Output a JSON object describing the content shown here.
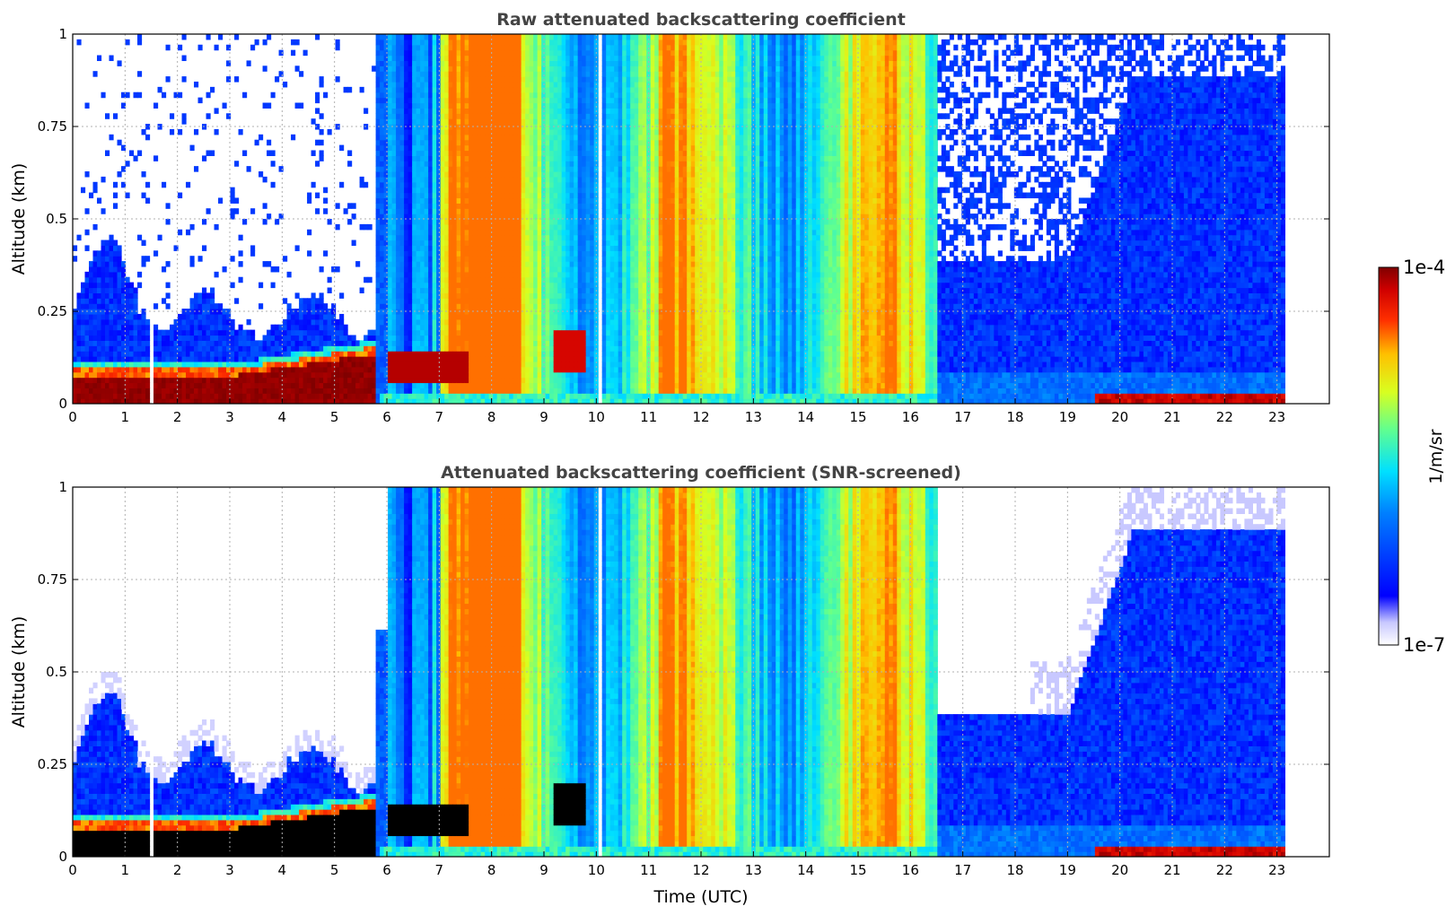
{
  "chart_data": [
    {
      "type": "heatmap",
      "title": "Raw attenuated backscattering coefficient",
      "xlabel": "",
      "ylabel": "Altitude (km)",
      "xlim": [
        0,
        24
      ],
      "ylim": [
        0,
        1
      ],
      "x_ticks": [
        "0",
        "1",
        "2",
        "3",
        "4",
        "5",
        "6",
        "7",
        "8",
        "9",
        "10",
        "11",
        "12",
        "13",
        "14",
        "15",
        "16",
        "17",
        "18",
        "19",
        "20",
        "21",
        "22",
        "23"
      ],
      "y_ticks": [
        "0",
        "0.25",
        "0.5",
        "0.75",
        "1"
      ],
      "grid": true,
      "data_end_time": 23.15,
      "colorbar": "1/m/sr",
      "screened": false
    },
    {
      "type": "heatmap",
      "title": "Attenuated backscattering coefficient (SNR-screened)",
      "xlabel": "Time (UTC)",
      "ylabel": "Altitude (km)",
      "xlim": [
        0,
        24
      ],
      "ylim": [
        0,
        1
      ],
      "x_ticks": [
        "0",
        "1",
        "2",
        "3",
        "4",
        "5",
        "6",
        "7",
        "8",
        "9",
        "10",
        "11",
        "12",
        "13",
        "14",
        "15",
        "16",
        "17",
        "18",
        "19",
        "20",
        "21",
        "22",
        "23"
      ],
      "y_ticks": [
        "0",
        "0.25",
        "0.5",
        "0.75",
        "1"
      ],
      "grid": true,
      "data_end_time": 23.15,
      "colorbar": "1/m/sr",
      "screened": true
    }
  ],
  "colorbar": {
    "label": "1/m/sr",
    "max_label": "1e-4",
    "min_label": "1e-7",
    "range": [
      1e-07,
      0.0001
    ],
    "scale": "log",
    "colormap": "jet",
    "placement": "right"
  }
}
